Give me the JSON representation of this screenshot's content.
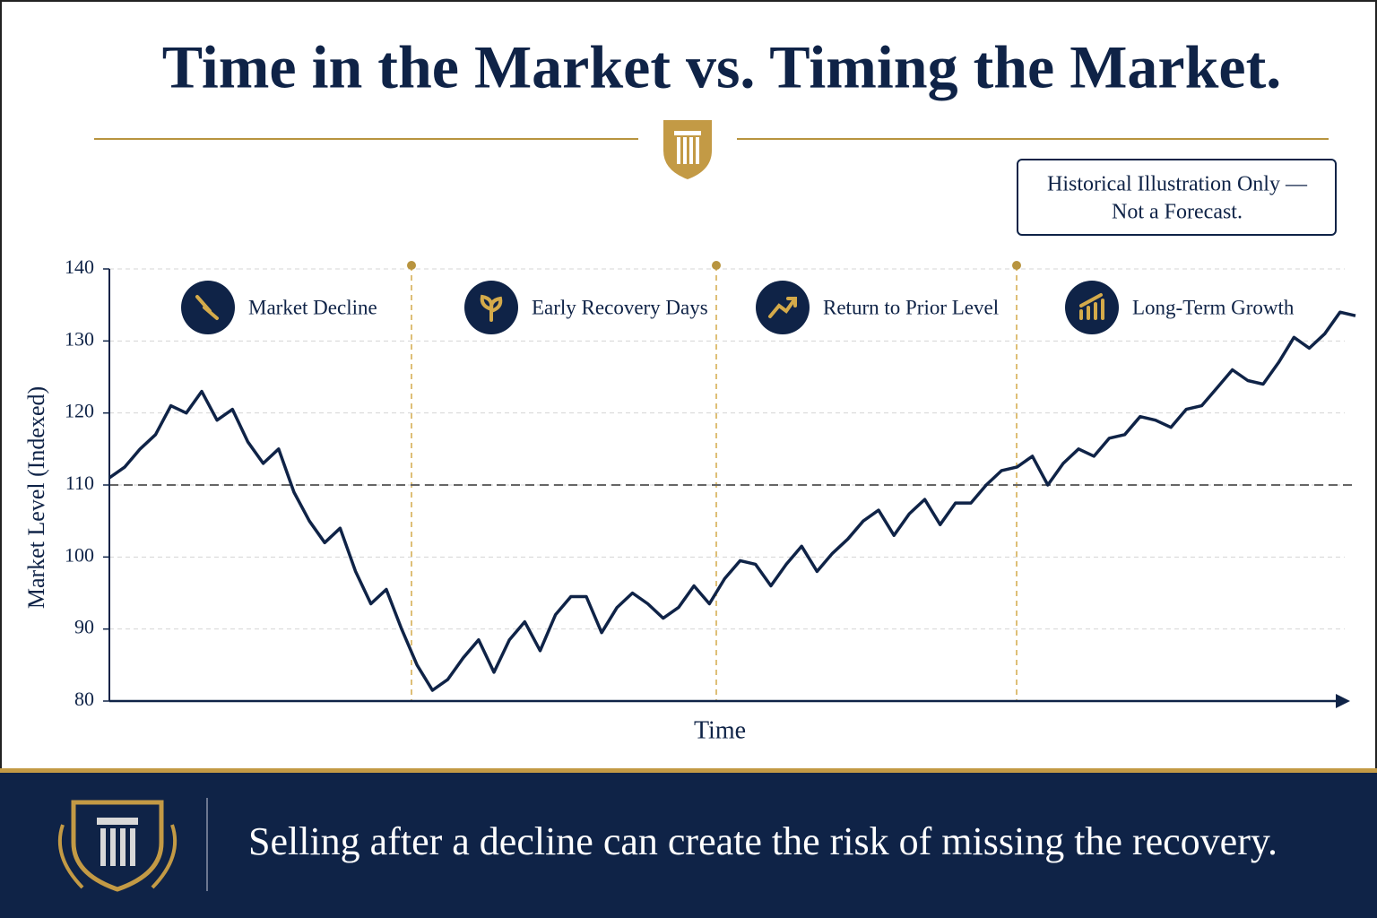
{
  "chart_data": {
    "type": "line",
    "title": "Time in the Market vs. Timing the Market.",
    "note": [
      "Historical Illustration Only —",
      "Not a Forecast."
    ],
    "phases": [
      "Market Decline",
      "Early Recovery Days",
      "Return to Prior Level",
      "Long-Term Growth"
    ],
    "y_label": "Market Level (Indexed)",
    "x_label": "Time",
    "ylim": [
      80,
      140
    ],
    "yticks": [
      80,
      90,
      100,
      110,
      120,
      130,
      140
    ],
    "grid": true,
    "reference_line": 110,
    "color": "#0f2347",
    "categories": [
      null,
      null,
      null,
      null,
      null,
      null,
      null,
      null,
      null,
      null,
      null,
      null,
      null,
      null,
      null,
      null,
      null,
      null,
      null,
      null,
      null,
      null,
      null,
      null,
      null,
      null,
      null,
      null,
      null,
      null,
      null,
      null,
      null,
      null,
      null,
      null,
      null,
      null,
      null,
      null,
      null,
      null,
      null,
      null,
      null,
      null,
      null,
      null,
      null,
      null,
      null,
      null,
      null,
      null,
      null,
      null,
      null,
      null,
      null,
      null,
      null,
      null,
      null,
      null,
      null,
      null,
      null,
      null,
      null,
      null,
      null,
      null,
      null,
      null,
      null,
      null,
      null,
      null,
      null,
      null,
      null,
      null
    ],
    "values": [
      111,
      112.5,
      115,
      117,
      121,
      120,
      123,
      119,
      120.5,
      116,
      113,
      115,
      109,
      105,
      102,
      104,
      98,
      93.5,
      95.5,
      90,
      85,
      81.5,
      83,
      86,
      88.5,
      84,
      88.5,
      91,
      87,
      92,
      94.5,
      94.5,
      89.5,
      93,
      95,
      93.5,
      91.5,
      93,
      96,
      93.5,
      97,
      99.5,
      99,
      96,
      99,
      101.5,
      98,
      100.5,
      102.5,
      105,
      106.5,
      103,
      106,
      108,
      104.5,
      107.5,
      107.5,
      110,
      112,
      112.5,
      114,
      110,
      113,
      115,
      114,
      116.5,
      117,
      119.5,
      119,
      118,
      120.5,
      121,
      123.5,
      126,
      124.5,
      124,
      127,
      130.5,
      129,
      131,
      134,
      133.5
    ]
  },
  "footer": {
    "text": "Selling after a decline can create the risk of missing the recovery."
  }
}
